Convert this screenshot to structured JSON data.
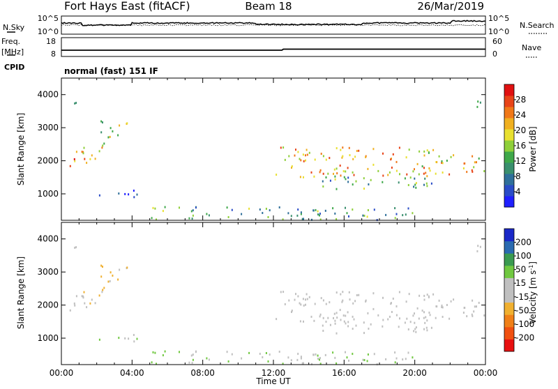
{
  "header": {
    "site": "Fort Hays East (fitACF)",
    "beam": "Beam 18",
    "date": "26/Mar/2019"
  },
  "top_panels": {
    "nsky_label": "N.Sky",
    "nsky_ticks": [
      "10^5",
      "10^0"
    ],
    "nsearch_label": "N.Search",
    "nsearch_ticks": [
      "10^5",
      "10^0"
    ],
    "freq_label": "Freq.",
    "freq_unit": "[MHz]",
    "freq_ticks": [
      "18",
      "8"
    ],
    "nave_label": "Nave",
    "nave_ticks": [
      "60",
      "0"
    ],
    "cpid_label": "CPID",
    "cpid_text": "normal (fast) 151 IF"
  },
  "chart_data": [
    {
      "type": "heatmap",
      "title": "",
      "ylabel": "Slant Range [km]",
      "xlabel": "",
      "x_ticks": [
        "00:00",
        "04:00",
        "08:00",
        "12:00",
        "16:00",
        "20:00",
        "00:00"
      ],
      "xlim_hours": [
        0,
        24
      ],
      "ylim": [
        200,
        4500
      ],
      "y_ticks": [
        1000,
        2000,
        3000,
        4000
      ],
      "colorbar": {
        "label": "Power [dB]",
        "ticks": [
          "28",
          "24",
          "20",
          "16",
          "12",
          "8",
          "4"
        ],
        "range": [
          0,
          30
        ],
        "colors": [
          "#1f1fff",
          "#2a4cc7",
          "#2f6f9a",
          "#3a8f6e",
          "#3fa84a",
          "#8fcf3a",
          "#e8e030",
          "#f0b020",
          "#f07818",
          "#e84418",
          "#e01010"
        ]
      },
      "scatter_regions": [
        {
          "t0": 0.0,
          "t1": 1.3,
          "r0": 1700,
          "r1": 2300,
          "power": 22
        },
        {
          "t0": 1.2,
          "t1": 2.4,
          "r0": 1900,
          "r1": 2700,
          "power": 20
        },
        {
          "t0": 2.2,
          "t1": 3.8,
          "r0": 2500,
          "r1": 3200,
          "power": 16
        },
        {
          "t0": 0.1,
          "t1": 0.9,
          "r0": 3500,
          "r1": 3900,
          "power": 9
        },
        {
          "t0": 1.7,
          "t1": 4.3,
          "r0": 900,
          "r1": 1150,
          "power": 7
        },
        {
          "t0": 12.0,
          "t1": 23.9,
          "r0": 1500,
          "r1": 2400,
          "power": 20
        },
        {
          "t0": 14.5,
          "t1": 21.0,
          "r0": 1100,
          "r1": 1500,
          "power": 11
        },
        {
          "t0": 5.0,
          "t1": 20.0,
          "r0": 200,
          "r1": 600,
          "power": 10
        },
        {
          "t0": 23.2,
          "t1": 23.7,
          "r0": 3400,
          "r1": 3800,
          "power": 6
        }
      ]
    },
    {
      "type": "heatmap",
      "title": "",
      "ylabel": "Slant Range [km]",
      "xlabel": "Time UT",
      "x_ticks": [
        "00:00",
        "04:00",
        "08:00",
        "12:00",
        "16:00",
        "20:00",
        "00:00"
      ],
      "xlim_hours": [
        0,
        24
      ],
      "ylim": [
        200,
        4500
      ],
      "y_ticks": [
        1000,
        2000,
        3000,
        4000
      ],
      "colorbar": {
        "label": "Velocity [m s^-1]",
        "ticks": [
          "200",
          "100",
          "50",
          "15",
          "-15",
          "-50",
          "-100",
          "-200"
        ],
        "range": [
          -250,
          250
        ],
        "colors": [
          "#e81010",
          "#f05010",
          "#f08018",
          "#f0b030",
          "#c0c0c0",
          "#c0c0c0",
          "#70c840",
          "#3a9a50",
          "#2a6ab0",
          "#1a28c8"
        ]
      },
      "scatter_regions": [
        {
          "t0": 0.0,
          "t1": 1.3,
          "r0": 1700,
          "r1": 2300,
          "vel": 0
        },
        {
          "t0": 1.2,
          "t1": 2.4,
          "r0": 1900,
          "r1": 2700,
          "vel": -40
        },
        {
          "t0": 2.2,
          "t1": 3.8,
          "r0": 2500,
          "r1": 3200,
          "vel": -60
        },
        {
          "t0": 0.1,
          "t1": 0.9,
          "r0": 3500,
          "r1": 3900,
          "vel": -30
        },
        {
          "t0": 1.7,
          "t1": 4.3,
          "r0": 900,
          "r1": 1150,
          "vel": 60
        },
        {
          "t0": 12.0,
          "t1": 23.9,
          "r0": 1500,
          "r1": 2400,
          "vel": 0
        },
        {
          "t0": 14.5,
          "t1": 21.0,
          "r0": 1100,
          "r1": 1500,
          "vel": 0
        },
        {
          "t0": 5.0,
          "t1": 20.0,
          "r0": 200,
          "r1": 600,
          "vel": 40
        },
        {
          "t0": 23.2,
          "t1": 23.7,
          "r0": 3400,
          "r1": 3800,
          "vel": -30
        }
      ]
    }
  ]
}
